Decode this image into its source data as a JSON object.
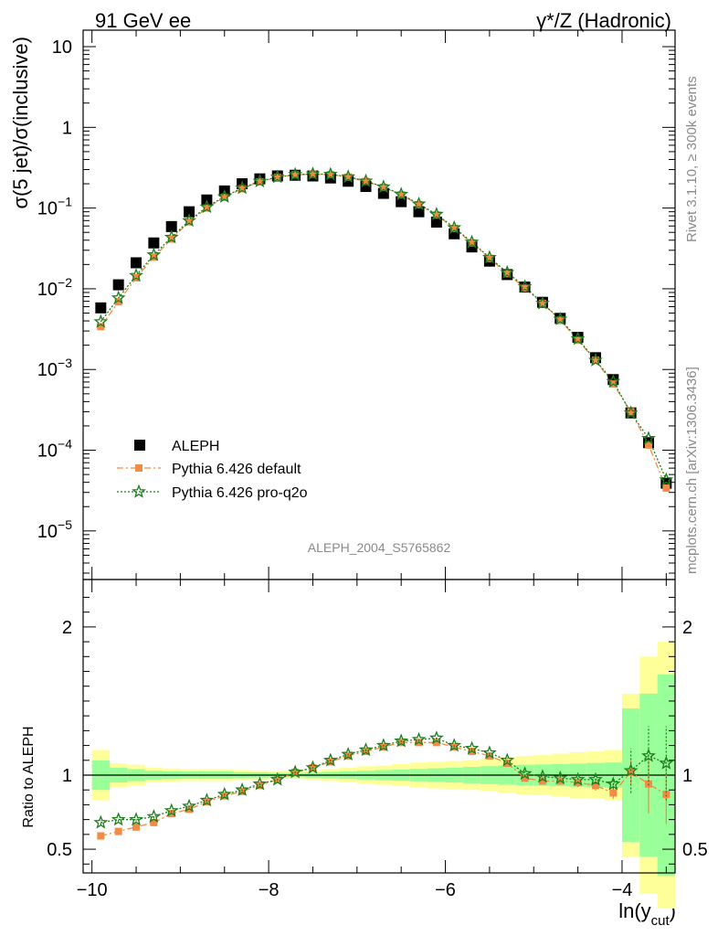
{
  "header": {
    "left_title": "91 GeV ee",
    "right_title": "γ*/Z (Hadronic)"
  },
  "side_labels": {
    "rivet": "Rivet 3.1.10, ≥ 300k events",
    "mcplots": "mcplots.cern.ch [arXiv:1306.3436]"
  },
  "analysis_label": "ALEPH_2004_S5765862",
  "colors": {
    "data": "#000000",
    "pythia_default": "#f28b45",
    "pythia_proq2o": "#1c7e1c",
    "band_outer": "#ffff99",
    "band_inner": "#99ff99",
    "side_text": "#8a8a8a"
  },
  "chart_data": [
    {
      "type": "scatter",
      "panel": "main",
      "ylabel_main": "σ(5 jet)/σ(inclusive)",
      "yscale": "log",
      "ylim": [
        2.5e-06,
        16
      ],
      "xlim": [
        -10.1,
        -3.4
      ],
      "y_ticks": [
        {
          "value": 10,
          "label": "10"
        },
        {
          "value": 1,
          "label": "1"
        },
        {
          "value": 0.1,
          "mant": "10",
          "exp": "−1"
        },
        {
          "value": 0.01,
          "mant": "10",
          "exp": "−2"
        },
        {
          "value": 0.001,
          "mant": "10",
          "exp": "−3"
        },
        {
          "value": 0.0001,
          "mant": "10",
          "exp": "−4"
        },
        {
          "value": 1e-05,
          "mant": "10",
          "exp": "−5"
        }
      ],
      "x": [
        -9.9,
        -9.7,
        -9.5,
        -9.3,
        -9.1,
        -8.9,
        -8.7,
        -8.5,
        -8.3,
        -8.1,
        -7.9,
        -7.7,
        -7.5,
        -7.3,
        -7.1,
        -6.9,
        -6.7,
        -6.5,
        -6.3,
        -6.1,
        -5.9,
        -5.7,
        -5.5,
        -5.3,
        -5.1,
        -4.9,
        -4.7,
        -4.5,
        -4.3,
        -4.1,
        -3.9,
        -3.7,
        -3.5
      ],
      "series": [
        {
          "name": "ALEPH",
          "marker": "square",
          "values": [
            0.0058,
            0.0112,
            0.021,
            0.037,
            0.059,
            0.09,
            0.126,
            0.163,
            0.2,
            0.23,
            0.25,
            0.255,
            0.25,
            0.236,
            0.215,
            0.185,
            0.152,
            0.12,
            0.09,
            0.067,
            0.048,
            0.033,
            0.022,
            0.015,
            0.0105,
            0.0068,
            0.0043,
            0.0025,
            0.0014,
            0.00075,
            0.00029,
            0.000124,
            3.9e-05
          ]
        },
        {
          "name": "Pythia 6.426 default",
          "marker": "square-small",
          "line": "dashdot",
          "values": [
            0.0034,
            0.0069,
            0.0137,
            0.0247,
            0.0413,
            0.0675,
            0.1,
            0.136,
            0.174,
            0.212,
            0.24,
            0.258,
            0.262,
            0.26,
            0.242,
            0.214,
            0.181,
            0.146,
            0.11,
            0.082,
            0.056,
            0.037,
            0.0237,
            0.0154,
            0.0102,
            0.0066,
            0.0041,
            0.0023,
            0.0013,
            0.00066,
            0.0003,
            0.000116,
            3.4e-05
          ]
        },
        {
          "name": "Pythia 6.426 pro-q2o",
          "marker": "star",
          "line": "dotted",
          "values": [
            0.0039,
            0.0077,
            0.0146,
            0.0263,
            0.0434,
            0.0698,
            0.1032,
            0.1385,
            0.1772,
            0.2148,
            0.2425,
            0.2601,
            0.2642,
            0.2617,
            0.2442,
            0.2159,
            0.1828,
            0.1479,
            0.1122,
            0.0837,
            0.0571,
            0.0378,
            0.0244,
            0.0159,
            0.0106,
            0.0066,
            0.0042,
            0.0024,
            0.0013,
            0.00071,
            0.00029,
            0.00014,
            4.3e-05
          ]
        }
      ]
    },
    {
      "type": "scatter",
      "panel": "ratio",
      "ylabel": "Ratio to ALEPH",
      "xlabel": "ln(y",
      "xlabel_sub": "cut",
      "xlabel_close": ")",
      "ylim": [
        0.34,
        2.32
      ],
      "xlim": [
        -10.1,
        -3.4
      ],
      "x_ticks": [
        {
          "value": -10,
          "label": "−10"
        },
        {
          "value": -8,
          "label": "−8"
        },
        {
          "value": -6,
          "label": "−6"
        },
        {
          "value": -4,
          "label": "−4"
        }
      ],
      "y_ticks": [
        {
          "value": 2,
          "label": "2"
        },
        {
          "value": 1,
          "label": "1"
        },
        {
          "value": 0.5,
          "label": "0.5"
        }
      ],
      "x": [
        -9.9,
        -9.7,
        -9.5,
        -9.3,
        -9.1,
        -8.9,
        -8.7,
        -8.5,
        -8.3,
        -8.1,
        -7.9,
        -7.7,
        -7.5,
        -7.3,
        -7.1,
        -6.9,
        -6.7,
        -6.5,
        -6.3,
        -6.1,
        -5.9,
        -5.7,
        -5.5,
        -5.3,
        -5.1,
        -4.9,
        -4.7,
        -4.5,
        -4.3,
        -4.1,
        -3.9,
        -3.7,
        -3.5
      ],
      "band_outer": [
        0.17,
        0.08,
        0.07,
        0.05,
        0.045,
        0.04,
        0.04,
        0.04,
        0.035,
        0.03,
        0.025,
        0.025,
        0.03,
        0.04,
        0.05,
        0.06,
        0.065,
        0.075,
        0.085,
        0.09,
        0.095,
        0.1,
        0.11,
        0.12,
        0.13,
        0.135,
        0.145,
        0.155,
        0.16,
        0.17,
        0.55,
        0.8,
        0.9
      ],
      "band_inner": [
        0.1,
        0.05,
        0.04,
        0.03,
        0.027,
        0.025,
        0.025,
        0.025,
        0.02,
        0.018,
        0.015,
        0.015,
        0.018,
        0.022,
        0.026,
        0.03,
        0.034,
        0.038,
        0.042,
        0.046,
        0.05,
        0.055,
        0.06,
        0.065,
        0.07,
        0.072,
        0.075,
        0.078,
        0.082,
        0.085,
        0.45,
        0.55,
        0.68
      ],
      "series": [
        {
          "name": "Pythia 6.426 default",
          "values": [
            0.59,
            0.62,
            0.65,
            0.68,
            0.74,
            0.77,
            0.82,
            0.86,
            0.89,
            0.93,
            0.97,
            1.02,
            1.05,
            1.09,
            1.13,
            1.16,
            1.19,
            1.22,
            1.22,
            1.22,
            1.19,
            1.16,
            1.13,
            1.08,
            0.98,
            0.96,
            0.96,
            0.95,
            0.93,
            0.88,
            1.02,
            0.94,
            0.87
          ],
          "errors": [
            0.02,
            0.015,
            0.012,
            0.01,
            0.01,
            0.01,
            0.008,
            0.008,
            0.008,
            0.008,
            0.008,
            0.008,
            0.008,
            0.008,
            0.008,
            0.008,
            0.008,
            0.01,
            0.01,
            0.01,
            0.01,
            0.012,
            0.015,
            0.02,
            0.02,
            0.025,
            0.025,
            0.03,
            0.035,
            0.04,
            0.08,
            0.2,
            0.2
          ]
        },
        {
          "name": "Pythia 6.426 pro-q2o",
          "values": [
            0.68,
            0.7,
            0.7,
            0.72,
            0.76,
            0.79,
            0.83,
            0.87,
            0.9,
            0.94,
            0.97,
            1.02,
            1.05,
            1.1,
            1.14,
            1.17,
            1.2,
            1.23,
            1.24,
            1.25,
            1.2,
            1.18,
            1.15,
            1.1,
            1.01,
            0.99,
            0.98,
            0.97,
            0.97,
            0.94,
            1.03,
            1.13,
            1.08
          ],
          "errors": [
            0.015,
            0.012,
            0.01,
            0.01,
            0.01,
            0.008,
            0.008,
            0.008,
            0.008,
            0.008,
            0.008,
            0.008,
            0.008,
            0.008,
            0.008,
            0.008,
            0.008,
            0.008,
            0.01,
            0.01,
            0.01,
            0.012,
            0.012,
            0.015,
            0.018,
            0.02,
            0.022,
            0.025,
            0.03,
            0.035,
            0.15,
            0.2,
            0.25
          ]
        }
      ]
    }
  ]
}
